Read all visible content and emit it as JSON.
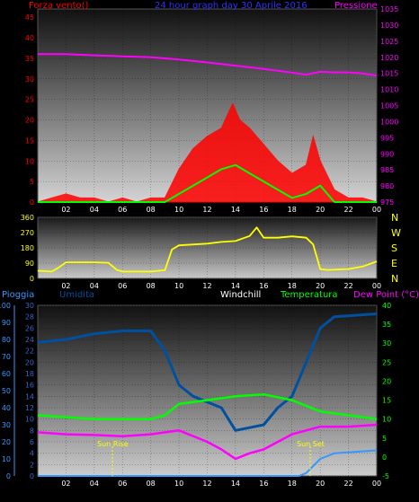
{
  "panel1": {
    "title": "24 hour graph day  30 Aprile 2016",
    "left_label": "Forza vento()",
    "right_label": "Pressione",
    "left_ticks": [
      "0",
      "5",
      "10",
      "15",
      "20",
      "25",
      "30",
      "35",
      "40",
      "45"
    ],
    "right_ticks": [
      "975",
      "980",
      "985",
      "990",
      "995",
      "1000",
      "1005",
      "1010",
      "1015",
      "1020",
      "1025",
      "1030",
      "1035"
    ],
    "x_ticks": [
      "02",
      "04",
      "06",
      "08",
      "10",
      "12",
      "14",
      "16",
      "18",
      "20",
      "22",
      "00"
    ]
  },
  "panel2": {
    "left_ticks": [
      "0",
      "90",
      "180",
      "270",
      "360"
    ],
    "right_letters": [
      "N",
      "W",
      "S",
      "E",
      "N"
    ],
    "x_ticks": [
      "02",
      "04",
      "06",
      "08",
      "10",
      "12",
      "14",
      "16",
      "18",
      "20",
      "22",
      "00"
    ]
  },
  "panel3": {
    "header": {
      "pioggia": "Pioggia",
      "umidita": "Umidita",
      "windchill": "Windchill",
      "temperatura": "Temperatura",
      "dewpoint": "Dew Point (°C)"
    },
    "far_left_ticks": [
      "0",
      "10",
      "20",
      "30",
      "40",
      "50",
      "60",
      "70",
      "80",
      "90",
      "100"
    ],
    "left_ticks": [
      "0",
      "2",
      "4",
      "6",
      "8",
      "10",
      "12",
      "14",
      "16",
      "18",
      "20",
      "22",
      "24",
      "26",
      "28",
      "30"
    ],
    "right_ticks": [
      "-5",
      "0",
      "5",
      "10",
      "15",
      "20",
      "25",
      "30",
      "35",
      "40"
    ],
    "x_ticks": [
      "02",
      "04",
      "06",
      "08",
      "10",
      "12",
      "14",
      "16",
      "18",
      "20",
      "22",
      "00"
    ],
    "sun_rise": "Sun Rise",
    "sun_set": "Sun Set"
  },
  "colors": {
    "wind": "#ff0000",
    "pressure": "#ff00ff",
    "gust_avg": "#00ff00",
    "direction": "#ffff00",
    "humidity": "#0050a0",
    "rain": "#3399ff",
    "temperature": "#00ff00",
    "dewpoint": "#ff00ff",
    "title_blue": "#3030ff"
  },
  "chart_data": [
    {
      "type": "line",
      "x_unit": "hour of day",
      "xlim": [
        0,
        24
      ],
      "ylim_left": [
        0,
        47
      ],
      "ylim_right": [
        975,
        1035
      ],
      "series": [
        {
          "axis": "right",
          "points": [
            [
              0,
              1021
            ],
            [
              2,
              1021
            ],
            [
              4,
              1020.6
            ],
            [
              6,
              1020.3
            ],
            [
              8,
              1020
            ],
            [
              10,
              1019.3
            ],
            [
              12,
              1018.4
            ],
            [
              14,
              1017.4
            ],
            [
              16,
              1016.4
            ],
            [
              18,
              1015.2
            ],
            [
              19,
              1014.6
            ],
            [
              20,
              1015.5
            ],
            [
              21,
              1015.3
            ],
            [
              22,
              1015.3
            ],
            [
              23,
              1015.0
            ],
            [
              24,
              1014.3
            ]
          ]
        },
        {
          "axis": "left",
          "points": [
            [
              0,
              0
            ],
            [
              2,
              0
            ],
            [
              4,
              0
            ],
            [
              6,
              0
            ],
            [
              8,
              0
            ],
            [
              9,
              0
            ],
            [
              10,
              2
            ],
            [
              11,
              4
            ],
            [
              12,
              6
            ],
            [
              13,
              8
            ],
            [
              14,
              9
            ],
            [
              15,
              7
            ],
            [
              16,
              5
            ],
            [
              17,
              3
            ],
            [
              18,
              1
            ],
            [
              19,
              2
            ],
            [
              20,
              4
            ],
            [
              21,
              0
            ],
            [
              24,
              0
            ]
          ]
        },
        {
          "axis": "left",
          "points": [
            [
              0,
              0
            ],
            [
              1,
              1
            ],
            [
              2,
              2
            ],
            [
              3,
              1
            ],
            [
              4,
              1
            ],
            [
              5,
              0
            ],
            [
              6,
              1
            ],
            [
              7,
              0
            ],
            [
              8,
              1
            ],
            [
              9,
              1
            ],
            [
              10,
              8
            ],
            [
              11,
              13
            ],
            [
              12,
              16
            ],
            [
              13,
              18
            ],
            [
              13.8,
              24
            ],
            [
              14.3,
              20
            ],
            [
              15,
              18
            ],
            [
              16,
              14
            ],
            [
              17,
              10
            ],
            [
              18,
              7
            ],
            [
              19,
              9
            ],
            [
              19.5,
              16
            ],
            [
              20,
              10
            ],
            [
              21,
              3
            ],
            [
              22,
              1
            ],
            [
              23,
              1
            ],
            [
              24,
              0
            ]
          ]
        }
      ]
    },
    {
      "type": "line",
      "x_unit": "hour of day",
      "xlim": [
        0,
        24
      ],
      "ylim": [
        0,
        360
      ],
      "series": [
        {
          "points": [
            [
              0,
              45
            ],
            [
              1,
              40
            ],
            [
              1.5,
              65
            ],
            [
              2,
              95
            ],
            [
              4,
              95
            ],
            [
              5,
              92
            ],
            [
              5.6,
              50
            ],
            [
              6,
              40
            ],
            [
              8,
              40
            ],
            [
              9,
              48
            ],
            [
              9.5,
              170
            ],
            [
              10,
              195
            ],
            [
              12,
              205
            ],
            [
              13,
              215
            ],
            [
              14,
              220
            ],
            [
              15,
              250
            ],
            [
              15.5,
              300
            ],
            [
              16,
              240
            ],
            [
              17,
              240
            ],
            [
              18,
              248
            ],
            [
              19,
              240
            ],
            [
              19.5,
              200
            ],
            [
              20,
              55
            ],
            [
              20.5,
              50
            ],
            [
              22,
              55
            ],
            [
              23,
              70
            ],
            [
              24,
              100
            ]
          ]
        }
      ]
    },
    {
      "type": "line",
      "x_unit": "hour of day",
      "xlim": [
        0,
        24
      ],
      "ylim_left": [
        0,
        30
      ],
      "ylim_right": [
        -5,
        40
      ],
      "series": [
        {
          "axis": "left",
          "points": [
            [
              0,
              23.5
            ],
            [
              2,
              24
            ],
            [
              4,
              25
            ],
            [
              6,
              25.5
            ],
            [
              8,
              25.5
            ],
            [
              9,
              22
            ],
            [
              10,
              16
            ],
            [
              11,
              14
            ],
            [
              12,
              13
            ],
            [
              13,
              12
            ],
            [
              14,
              8
            ],
            [
              15,
              8.5
            ],
            [
              16,
              9
            ],
            [
              17,
              12
            ],
            [
              18,
              14
            ],
            [
              19,
              20
            ],
            [
              20,
              26
            ],
            [
              21,
              28
            ],
            [
              24,
              28.5
            ]
          ]
        },
        {
          "axis": "left",
          "points": [
            [
              0,
              0
            ],
            [
              18.5,
              0
            ],
            [
              19,
              0.5
            ],
            [
              20,
              3
            ],
            [
              21,
              4
            ],
            [
              24,
              4.5
            ]
          ]
        },
        {
          "axis": "right",
          "points": [
            [
              0,
              11
            ],
            [
              2,
              10.5
            ],
            [
              4,
              10
            ],
            [
              6,
              10
            ],
            [
              8,
              10
            ],
            [
              9,
              11
            ],
            [
              10,
              14
            ],
            [
              12,
              15
            ],
            [
              14,
              16
            ],
            [
              16,
              16.5
            ],
            [
              18,
              15
            ],
            [
              20,
              12
            ],
            [
              22,
              11
            ],
            [
              24,
              10
            ]
          ]
        },
        {
          "axis": "right",
          "points": [
            [
              0,
              6.5
            ],
            [
              2,
              6
            ],
            [
              4,
              5.8
            ],
            [
              6,
              5.5
            ],
            [
              8,
              6
            ],
            [
              10,
              7
            ],
            [
              12,
              4
            ],
            [
              13,
              2
            ],
            [
              14,
              -0.5
            ],
            [
              15,
              1
            ],
            [
              16,
              2
            ],
            [
              17,
              4
            ],
            [
              18,
              6
            ],
            [
              19,
              7
            ],
            [
              20,
              8
            ],
            [
              22,
              8
            ],
            [
              24,
              8.5
            ]
          ]
        }
      ]
    }
  ]
}
